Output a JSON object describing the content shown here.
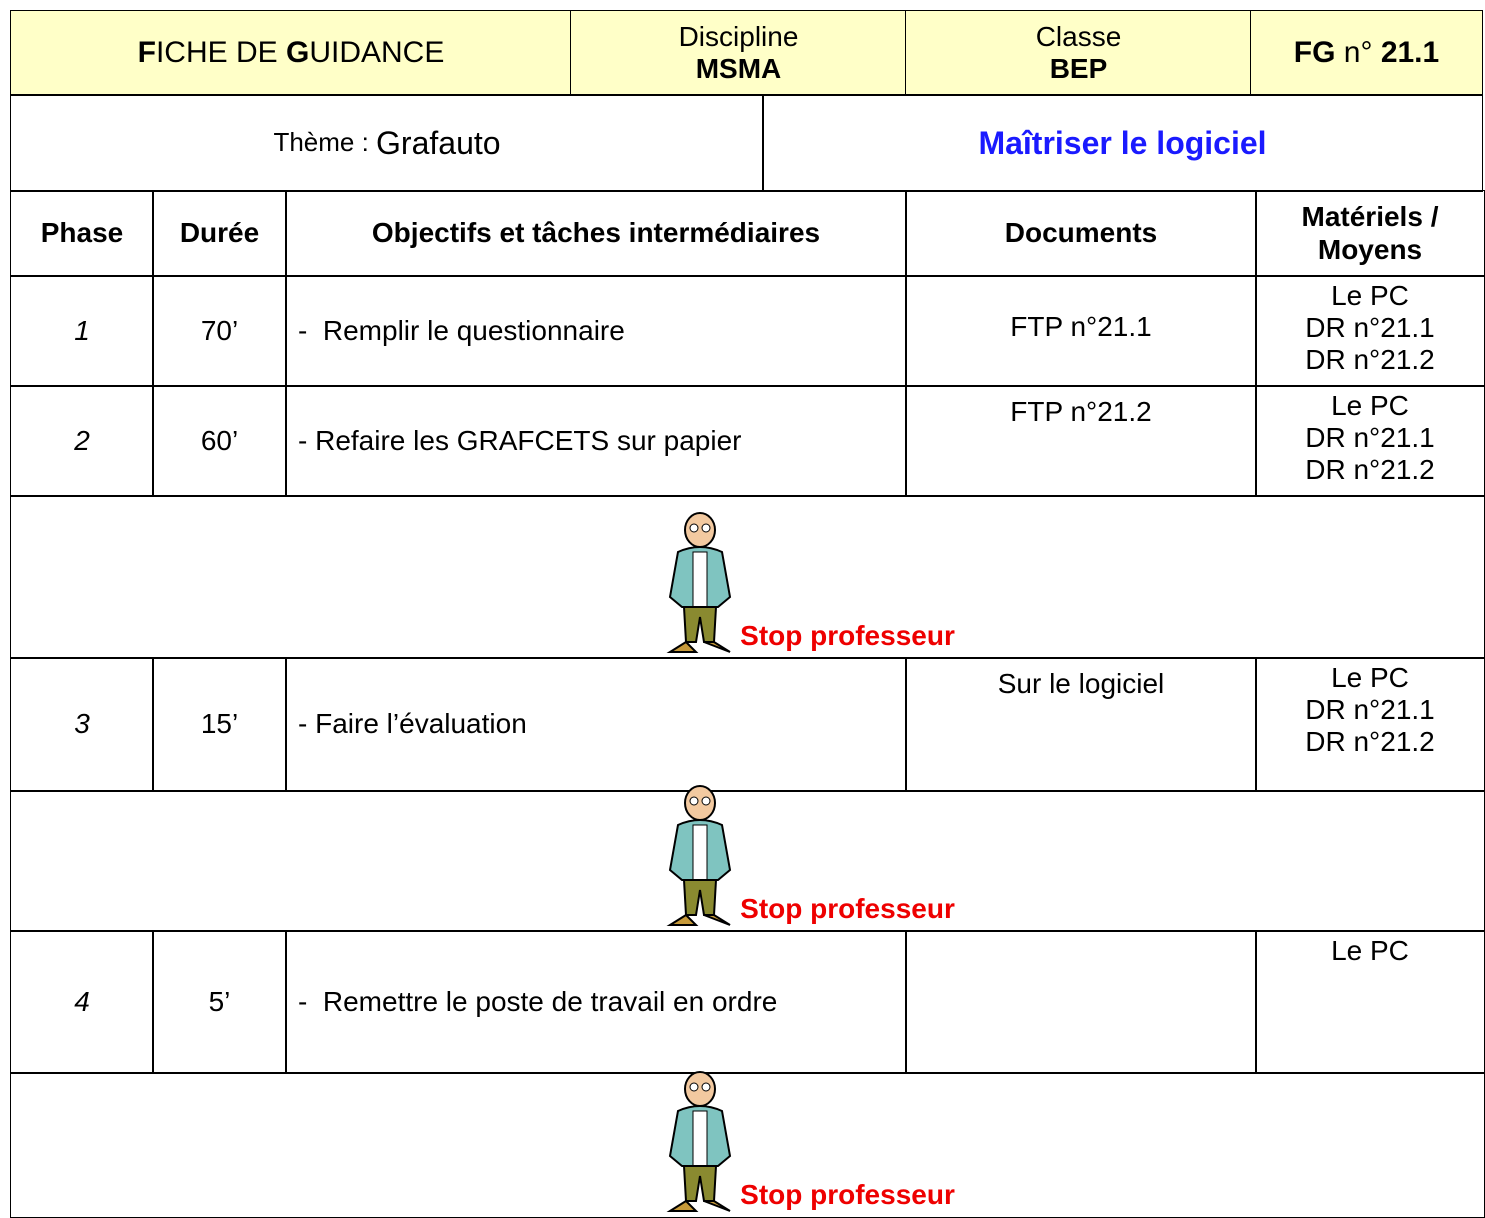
{
  "header": {
    "title": [
      "F",
      "ICHE DE ",
      "G",
      "UIDANCE"
    ],
    "discipline_label": "Discipline",
    "discipline": "MSMA",
    "class_label": "Classe",
    "class": "BEP",
    "ref": [
      "FG",
      " n° ",
      "21.1"
    ]
  },
  "theme": {
    "label": "Thème : ",
    "value": "Grafauto",
    "goal": "Maîtriser le logiciel"
  },
  "table": {
    "headers": [
      "Phase",
      "Durée",
      "Objectifs et tâches intermédiaires",
      "Documents",
      "Matériels / Moyens"
    ],
    "rows": [
      {
        "phase": "1",
        "duration": "70’",
        "task": "-  Remplir le questionnaire",
        "documents": "FTP n°21.1",
        "materials": [
          "Le PC",
          "DR n°21.1",
          "DR n°21.2"
        ]
      },
      {
        "phase": "2",
        "duration": "60’",
        "task": "- Refaire les GRAFCETS sur papier",
        "documents": "FTP n°21.2",
        "materials": [
          "Le PC",
          "DR n°21.1",
          "DR n°21.2"
        ]
      },
      {
        "stop": "Stop professeur"
      },
      {
        "phase": "3",
        "duration": "15’",
        "task": "- Faire l’évaluation",
        "documents": "Sur le logiciel",
        "materials": [
          "Le PC",
          "DR n°21.1",
          "DR n°21.2"
        ]
      },
      {
        "stop": "Stop professeur"
      },
      {
        "phase": "4",
        "duration": "5’",
        "task": "-  Remettre le poste de travail en ordre",
        "documents": "",
        "materials": [
          "Le PC"
        ]
      },
      {
        "stop": "Stop professeur"
      }
    ]
  }
}
